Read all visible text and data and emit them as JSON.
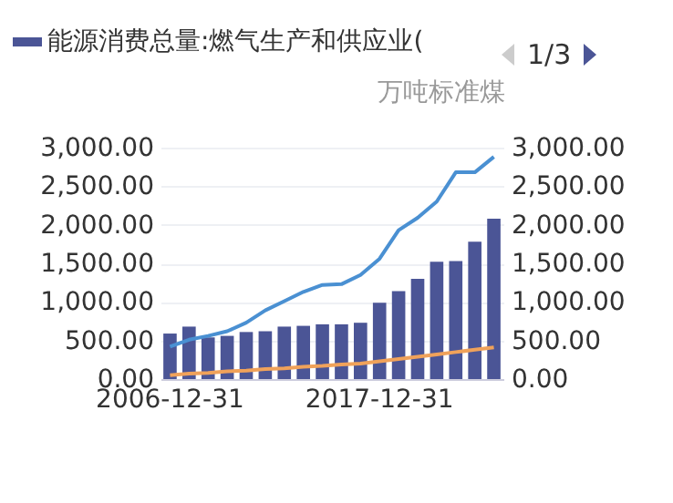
{
  "chart_data": {
    "type": "bar",
    "categories": [
      "2006-12-31",
      null,
      null,
      null,
      null,
      null,
      null,
      null,
      null,
      null,
      null,
      "2017-12-31",
      null,
      null,
      null,
      null,
      null,
      null
    ],
    "series": [
      {
        "name": "能源消费总量:燃气生产和供应业(",
        "color": "#4b5596",
        "values": [
          590,
          680,
          540,
          560,
          610,
          620,
          680,
          690,
          710,
          710,
          730,
          990,
          1140,
          1300,
          1520,
          1530,
          1780,
          2080
        ]
      },
      {
        "type": "line",
        "axis": "y2",
        "color": "#4a90d2",
        "values": [
          420,
          510,
          560,
          620,
          730,
          890,
          1010,
          1130,
          1220,
          1230,
          1350,
          1560,
          1930,
          2090,
          2300,
          2680,
          2680,
          2880
        ]
      },
      {
        "type": "line",
        "axis": "y2",
        "color": "#f0a25a",
        "values": [
          50,
          70,
          80,
          100,
          110,
          130,
          140,
          160,
          170,
          190,
          200,
          230,
          260,
          290,
          320,
          350,
          380,
          410
        ]
      }
    ],
    "y2label": "万吨标准煤",
    "ylim": [
      0,
      3000
    ],
    "yticks": [
      {
        "value": 0,
        "label": "0.00"
      },
      {
        "value": 500,
        "label": "500.00"
      },
      {
        "value": 1000,
        "label": "1,000.00"
      },
      {
        "value": 1500,
        "label": "1,500.00"
      },
      {
        "value": 2000,
        "label": "2,000.00"
      },
      {
        "value": 2500,
        "label": "2,500.00"
      },
      {
        "value": 3000,
        "label": "3,000.00"
      }
    ],
    "y2lim": [
      0,
      3000
    ],
    "y2ticks": [
      {
        "value": 0,
        "label": "0.00"
      },
      {
        "value": 500,
        "label": "500.00"
      },
      {
        "value": 1000,
        "label": "1,000.00"
      },
      {
        "value": 1500,
        "label": "1,500.00"
      },
      {
        "value": 2000,
        "label": "2,000.00"
      },
      {
        "value": 2500,
        "label": "2,500.00"
      },
      {
        "value": 3000,
        "label": "3,000.00"
      }
    ],
    "grid": "y",
    "legend": "top",
    "marker": "none",
    "line_style": "solid",
    "annotations": [
      "1/3"
    ]
  }
}
